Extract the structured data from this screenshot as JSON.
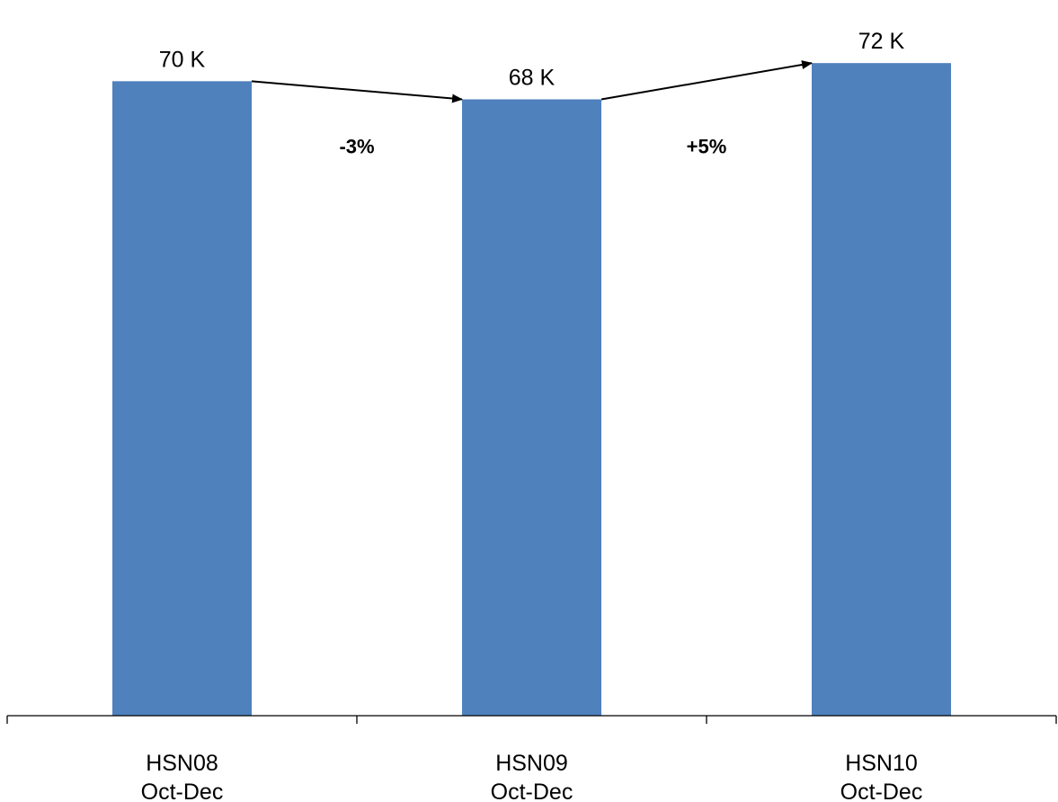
{
  "chart_data": {
    "type": "bar",
    "categories": [
      {
        "line1": "HSN08",
        "line2": "Oct-Dec"
      },
      {
        "line1": "HSN09",
        "line2": "Oct-Dec"
      },
      {
        "line1": "HSN10",
        "line2": "Oct-Dec"
      }
    ],
    "values": [
      70,
      68,
      72
    ],
    "value_labels": [
      "70 K",
      "68 K",
      "72 K"
    ],
    "annotations": [
      {
        "from": 0,
        "to": 1,
        "label": "-3%"
      },
      {
        "from": 1,
        "to": 2,
        "label": "+5%"
      }
    ],
    "ylim": [
      0,
      74
    ],
    "grid": false,
    "legend": "none",
    "colors": {
      "bar": "#4f81bd"
    }
  }
}
